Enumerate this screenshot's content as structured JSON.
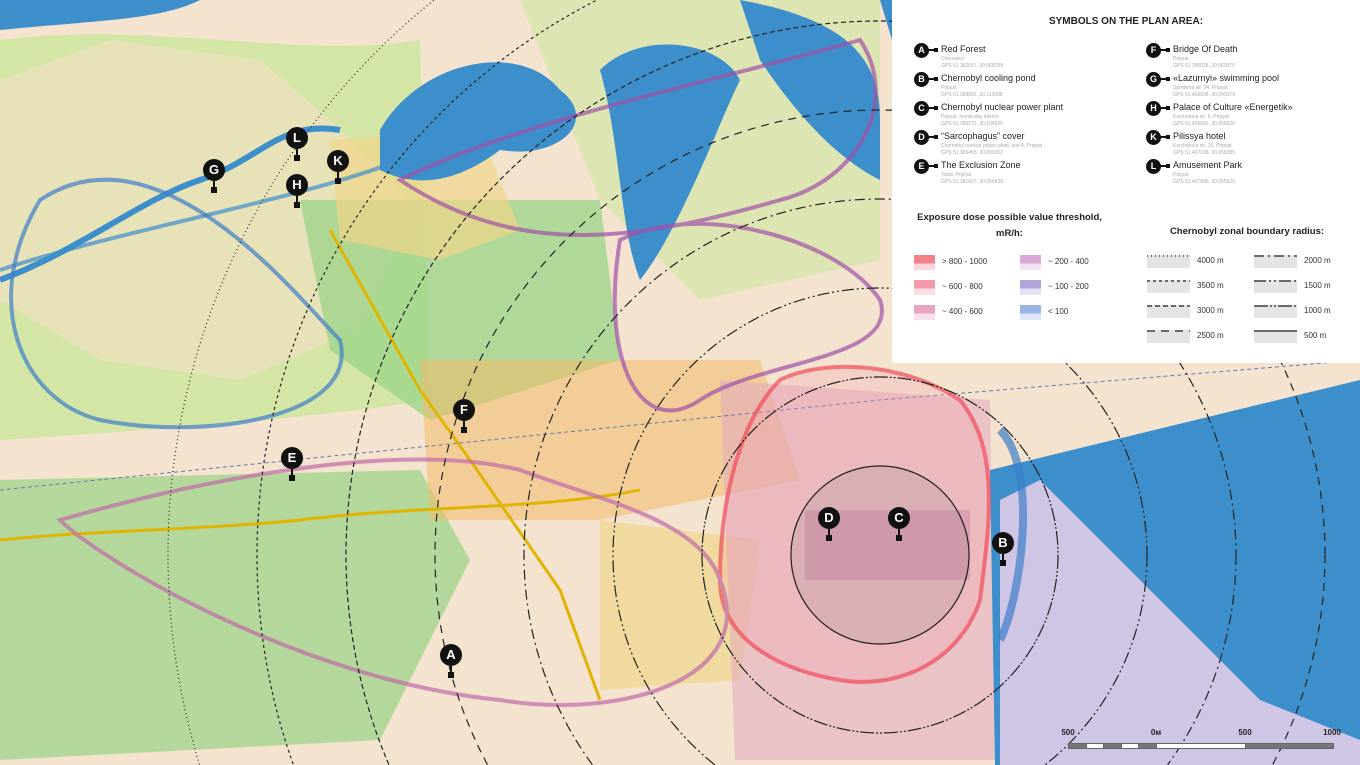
{
  "map": {
    "colors": {
      "background": "#f3e3cf",
      "forest": "#9fd48a",
      "water": "#3d8fcc",
      "meadow": "#cfe6a0",
      "urban": "#e9dcc0",
      "yellow_zone": "#f0d68a",
      "orange_zone": "#f2bb6c",
      "plant": "#e0a9c0"
    },
    "center_label": "Chernobyl nuclear power plant"
  },
  "markers": [
    {
      "letter": "A",
      "name": "Red Forest",
      "place": "Chernobyl",
      "gps": "GPS 51.382657, 30.068299"
    },
    {
      "letter": "B",
      "name": "Chernobyl cooling pond",
      "place": "Pripyat",
      "gps": "GPS 51.388582, 30.113008"
    },
    {
      "letter": "C",
      "name": "Chernobyl nuclear power plant",
      "place": "Pripyat, Ivankivsky district",
      "gps": "GPS 51.389272, 30.104505"
    },
    {
      "letter": "D",
      "name": "“Sarcophagus” cover",
      "place": "Chernobyl nuclear power plant, unit 4, Pripyat",
      "gps": "GPS 51.389455, 30.099302"
    },
    {
      "letter": "E",
      "name": "The Exclusion Zone",
      "place": "Yaniv, Pripyat",
      "gps": "GPS 51.381667, 30.054838"
    },
    {
      "letter": "F",
      "name": "Bridge Of Death",
      "place": "Pripyat",
      "gps": "GPS 51.395028, 30.069370"
    },
    {
      "letter": "G",
      "name": "«Lazurnyi» swimming pool",
      "place": "Sportivna str. 24, Pripyat",
      "gps": "GPS 51.406838, 30.049379"
    },
    {
      "letter": "H",
      "name": "Palace of Culture «Energetik»",
      "place": "Kurchatova str. 8, Pripyat",
      "gps": "GPS 51.406842, 30.056626"
    },
    {
      "letter": "K",
      "name": "Pilissya hotel",
      "place": "Kurchatova str. 10, Pripyat",
      "gps": "GPS 51.407038, 30.058385"
    },
    {
      "letter": "L",
      "name": "Amusement Park",
      "place": "Pripyat",
      "gps": "GPS 51.407896, 30.055625"
    }
  ],
  "legend": {
    "title": "SYMBOLS ON THE PLAN AREA:",
    "dose_title_1": "Exposure dose possible value threshold,",
    "dose_title_2": "mR/h:",
    "dose": [
      {
        "label": "> 800 - 1000",
        "color": "#f4808a"
      },
      {
        "label": "~ 600 - 800",
        "color": "#f49aaa"
      },
      {
        "label": "~ 400 - 600",
        "color": "#e8a4c0"
      },
      {
        "label": "~ 200 - 400",
        "color": "#d9a8d4"
      },
      {
        "label": "~ 100 - 200",
        "color": "#b4a4dc"
      },
      {
        "label": "< 100",
        "color": "#9ab4e8"
      }
    ],
    "radius_title": "Chernobyl zonal boundary radius:",
    "radii": [
      {
        "label": "4000 m",
        "dash": "1 3"
      },
      {
        "label": "3500 m",
        "dash": "3 3"
      },
      {
        "label": "3000 m",
        "dash": "5 3"
      },
      {
        "label": "2500 m",
        "dash": "8 6"
      },
      {
        "label": "2000 m",
        "dash": "10 4 2 4"
      },
      {
        "label": "1500 m",
        "dash": "12 3 2 3 2 3"
      },
      {
        "label": "1000 m",
        "dash": "14 2 2 2 2 2"
      },
      {
        "label": "500 m",
        "dash": ""
      }
    ]
  },
  "scale": {
    "labels": [
      "500",
      "0м",
      "500",
      "1000"
    ]
  }
}
